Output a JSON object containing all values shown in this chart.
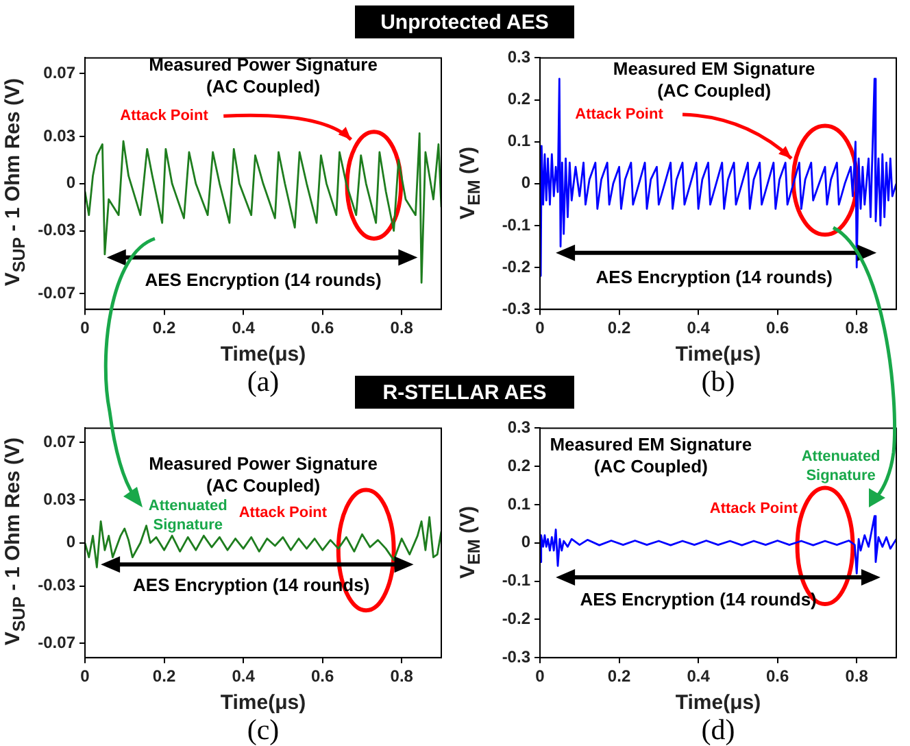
{
  "chart_data": [
    {
      "type": "line",
      "title": "Unprotected AES",
      "xlabel": "Time(μs)",
      "ylabel": "V$_{SUP}$ - 1 Ohm Res (V)",
      "xlim": [
        0,
        0.9
      ],
      "ylim": [
        -0.08,
        0.08
      ],
      "xticks": [
        0,
        0.2,
        0.4,
        0.6,
        0.8
      ],
      "yticks": [
        -0.07,
        -0.03,
        0,
        0.03,
        0.07
      ],
      "annotations": [
        "Measured Power Signature\n(AC Coupled)",
        "Attack Point",
        "AES Encryption (14 rounds)",
        "(a)"
      ],
      "x": [
        0,
        0.01,
        0.02,
        0.03,
        0.044,
        0.05,
        0.06,
        0.085,
        0.097,
        0.11,
        0.14,
        0.157,
        0.17,
        0.195,
        0.204,
        0.22,
        0.25,
        0.263,
        0.28,
        0.31,
        0.323,
        0.34,
        0.365,
        0.376,
        0.39,
        0.42,
        0.43,
        0.45,
        0.48,
        0.489,
        0.505,
        0.53,
        0.542,
        0.56,
        0.585,
        0.596,
        0.61,
        0.635,
        0.643,
        0.66,
        0.685,
        0.697,
        0.71,
        0.735,
        0.744,
        0.76,
        0.78,
        0.792,
        0.81,
        0.835,
        0.845,
        0.85,
        0.86,
        0.88,
        0.893,
        0.9
      ],
      "series": [
        {
          "color": "#1e7d1e",
          "values": [
            -0.005,
            -0.02,
            0.005,
            0.018,
            0.025,
            -0.045,
            -0.01,
            -0.02,
            0.027,
            0.005,
            -0.02,
            0.022,
            0.005,
            -0.025,
            0.022,
            0,
            -0.022,
            0.02,
            0,
            -0.02,
            0.02,
            0,
            -0.025,
            0.022,
            0,
            -0.02,
            0.018,
            0,
            -0.022,
            0.02,
            0,
            -0.028,
            0.02,
            0,
            -0.025,
            0.018,
            0,
            -0.02,
            0.02,
            0,
            -0.02,
            0.018,
            0,
            -0.025,
            0.02,
            -0.005,
            -0.03,
            0.015,
            -0.01,
            -0.02,
            0.032,
            -0.063,
            0.02,
            -0.01,
            0.025,
            -0.015
          ]
        }
      ]
    },
    {
      "type": "line",
      "xlabel": "Time(μs)",
      "ylabel": "V$_{EM}$ (V)",
      "xlim": [
        0,
        0.9
      ],
      "ylim": [
        -0.3,
        0.3
      ],
      "xticks": [
        0,
        0.2,
        0.4,
        0.6,
        0.8
      ],
      "yticks": [
        -0.3,
        -0.2,
        -0.1,
        0,
        0.1,
        0.2,
        0.3
      ],
      "annotations": [
        "Measured EM Signature\n(AC Coupled)",
        "Attack Point",
        "AES Encryption (14 rounds)",
        "(b)"
      ],
      "x": [
        0,
        0.002,
        0.004,
        0.008,
        0.012,
        0.016,
        0.02,
        0.025,
        0.03,
        0.035,
        0.04,
        0.045,
        0.049,
        0.052,
        0.056,
        0.06,
        0.065,
        0.07,
        0.075,
        0.08,
        0.09,
        0.1,
        0.11,
        0.115,
        0.125,
        0.14,
        0.145,
        0.155,
        0.17,
        0.175,
        0.185,
        0.2,
        0.205,
        0.215,
        0.23,
        0.235,
        0.25,
        0.265,
        0.27,
        0.28,
        0.295,
        0.3,
        0.315,
        0.33,
        0.335,
        0.345,
        0.36,
        0.365,
        0.38,
        0.395,
        0.4,
        0.41,
        0.425,
        0.43,
        0.445,
        0.46,
        0.465,
        0.475,
        0.49,
        0.495,
        0.51,
        0.525,
        0.53,
        0.54,
        0.555,
        0.56,
        0.575,
        0.59,
        0.595,
        0.605,
        0.62,
        0.625,
        0.64,
        0.655,
        0.66,
        0.67,
        0.685,
        0.69,
        0.705,
        0.72,
        0.725,
        0.735,
        0.75,
        0.755,
        0.77,
        0.785,
        0.79,
        0.797,
        0.8,
        0.805,
        0.81,
        0.815,
        0.82,
        0.83,
        0.835,
        0.845,
        0.848,
        0.855,
        0.86,
        0.865,
        0.87,
        0.875,
        0.88,
        0.885,
        0.89,
        0.9
      ],
      "series": [
        {
          "color": "#0000ff",
          "values": [
            0,
            -0.22,
            0.09,
            -0.05,
            0.07,
            -0.04,
            0.06,
            -0.05,
            0.07,
            -0.03,
            0.04,
            -0.02,
            0.25,
            -0.15,
            0.05,
            -0.12,
            0.06,
            -0.08,
            0.05,
            -0.04,
            0.04,
            -0.03,
            0.05,
            -0.05,
            0.01,
            0.05,
            -0.06,
            0.01,
            0.05,
            -0.05,
            0,
            0.04,
            -0.06,
            0.01,
            0.05,
            -0.05,
            0,
            0.05,
            -0.06,
            0.01,
            0.04,
            -0.05,
            0,
            0.05,
            -0.06,
            0.01,
            0.05,
            -0.05,
            0,
            0.05,
            -0.06,
            0.01,
            0.05,
            -0.05,
            0,
            0.05,
            -0.06,
            0.01,
            0.05,
            -0.05,
            0,
            0.05,
            -0.06,
            0.01,
            0.05,
            -0.05,
            0,
            0.05,
            -0.06,
            0.01,
            0.05,
            -0.05,
            0,
            0.05,
            -0.06,
            0.01,
            0.05,
            -0.04,
            0,
            0.04,
            -0.05,
            0.01,
            0.05,
            -0.05,
            0,
            0.04,
            -0.03,
            0.1,
            -0.2,
            0.06,
            -0.06,
            0.04,
            -0.05,
            0.06,
            -0.08,
            0.25,
            -0.09,
            0.06,
            -0.1,
            0.07,
            -0.08,
            0.05,
            -0.04,
            0.06,
            -0.03,
            0
          ]
        }
      ]
    },
    {
      "type": "line",
      "title": "R-STELLAR AES",
      "xlabel": "Time(μs)",
      "ylabel": "V$_{SUP}$ - 1 Ohm Res (V)",
      "xlim": [
        0,
        0.9
      ],
      "ylim": [
        -0.08,
        0.08
      ],
      "xticks": [
        0,
        0.2,
        0.4,
        0.6,
        0.8
      ],
      "yticks": [
        -0.07,
        -0.03,
        0,
        0.03,
        0.07
      ],
      "annotations": [
        "Measured Power Signature\n(AC Coupled)",
        "Attenuated\nSignature",
        "Attack Point",
        "AES Encryption (14 rounds)",
        "(c)"
      ],
      "x": [
        0,
        0.01,
        0.02,
        0.03,
        0.04,
        0.05,
        0.06,
        0.07,
        0.09,
        0.1,
        0.11,
        0.12,
        0.14,
        0.155,
        0.165,
        0.18,
        0.2,
        0.22,
        0.24,
        0.26,
        0.28,
        0.3,
        0.32,
        0.34,
        0.36,
        0.38,
        0.4,
        0.42,
        0.44,
        0.46,
        0.48,
        0.5,
        0.52,
        0.54,
        0.56,
        0.58,
        0.6,
        0.62,
        0.64,
        0.66,
        0.68,
        0.7,
        0.72,
        0.74,
        0.76,
        0.78,
        0.8,
        0.82,
        0.84,
        0.85,
        0.86,
        0.87,
        0.88,
        0.89,
        0.9
      ],
      "series": [
        {
          "color": "#1e7d1e",
          "values": [
            0,
            -0.01,
            0.005,
            -0.017,
            0.015,
            -0.005,
            0.005,
            -0.01,
            0.005,
            0.01,
            0.002,
            -0.01,
            0,
            0.012,
            0,
            0.004,
            -0.005,
            0.005,
            -0.006,
            0.004,
            -0.005,
            0.005,
            -0.003,
            0.004,
            -0.005,
            0.003,
            -0.004,
            0.004,
            -0.006,
            0.003,
            -0.002,
            0.004,
            -0.005,
            0.003,
            -0.004,
            0.003,
            -0.005,
            0.002,
            -0.004,
            0.004,
            -0.006,
            0.006,
            -0.003,
            0.002,
            -0.004,
            -0.012,
            0.003,
            -0.008,
            0.005,
            0.015,
            -0.005,
            0.018,
            -0.01,
            -0.008,
            0.008
          ]
        }
      ]
    },
    {
      "type": "line",
      "xlabel": "Time(μs)",
      "ylabel": "V$_{EM}$ (V)",
      "xlim": [
        0,
        0.9
      ],
      "ylim": [
        -0.3,
        0.3
      ],
      "xticks": [
        0,
        0.2,
        0.4,
        0.6,
        0.8
      ],
      "yticks": [
        -0.3,
        -0.2,
        -0.1,
        0,
        0.1,
        0.2,
        0.3
      ],
      "annotations": [
        "Measured EM Signature\n(AC Coupled)",
        "Attenuated\nSignature",
        "Attack Point",
        "AES Encryption (14 rounds)",
        "(d)"
      ],
      "x": [
        0,
        0.003,
        0.008,
        0.012,
        0.016,
        0.02,
        0.025,
        0.03,
        0.035,
        0.04,
        0.045,
        0.05,
        0.055,
        0.06,
        0.07,
        0.08,
        0.1,
        0.12,
        0.15,
        0.18,
        0.21,
        0.24,
        0.27,
        0.3,
        0.33,
        0.36,
        0.39,
        0.42,
        0.45,
        0.48,
        0.51,
        0.54,
        0.57,
        0.6,
        0.63,
        0.66,
        0.69,
        0.72,
        0.75,
        0.78,
        0.795,
        0.8,
        0.805,
        0.81,
        0.82,
        0.83,
        0.845,
        0.848,
        0.855,
        0.865,
        0.875,
        0.885,
        0.9
      ],
      "series": [
        {
          "color": "#0000ff",
          "values": [
            -0.05,
            0.02,
            -0.01,
            0.02,
            -0.01,
            0.01,
            -0.02,
            0.015,
            -0.02,
            0.035,
            -0.06,
            0.01,
            -0.02,
            0.005,
            -0.01,
            0.01,
            -0.005,
            0.008,
            -0.006,
            0.006,
            -0.005,
            0.006,
            -0.005,
            0.005,
            -0.006,
            0.005,
            -0.005,
            0.006,
            -0.005,
            0.005,
            -0.006,
            0.005,
            -0.005,
            0.006,
            -0.005,
            0.005,
            -0.006,
            0.005,
            -0.005,
            0.006,
            -0.005,
            -0.08,
            0.01,
            -0.02,
            0.02,
            -0.01,
            0.07,
            -0.05,
            0.015,
            -0.01,
            0.015,
            -0.015,
            0.01
          ]
        }
      ]
    }
  ]
}
